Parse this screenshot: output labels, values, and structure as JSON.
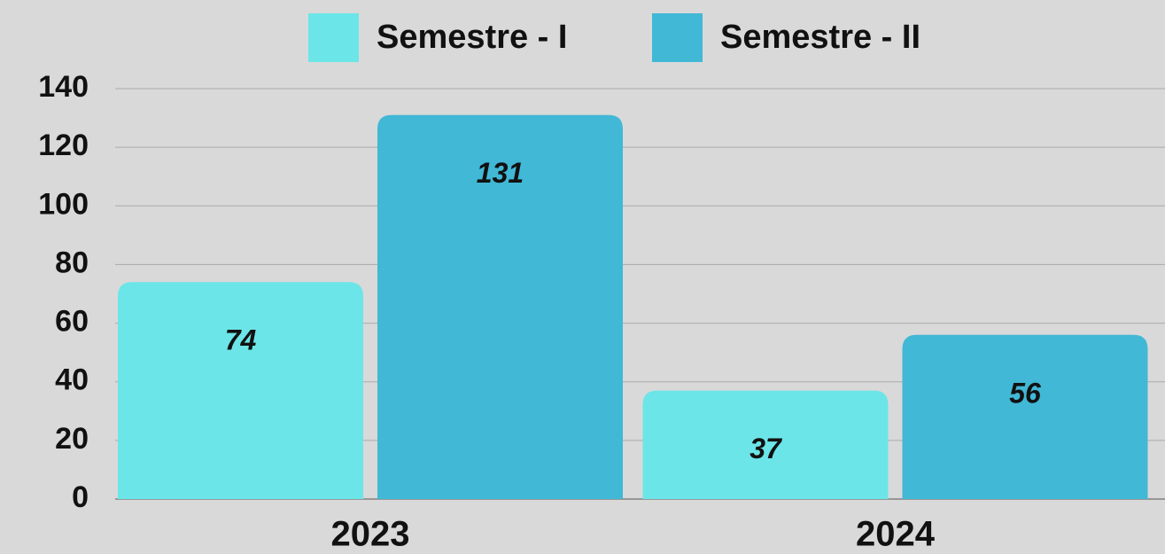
{
  "chart_data": {
    "type": "bar",
    "categories": [
      "2023",
      "2024"
    ],
    "series": [
      {
        "name": "Semestre - I",
        "color": "#6ce5e8",
        "values": [
          74,
          37
        ]
      },
      {
        "name": "Semestre - II",
        "color": "#41b8d5",
        "values": [
          131,
          56
        ]
      }
    ],
    "ylim": [
      0,
      140
    ],
    "yticks": [
      0,
      20,
      40,
      60,
      80,
      100,
      120,
      140
    ],
    "grid": true,
    "legend": "top"
  }
}
